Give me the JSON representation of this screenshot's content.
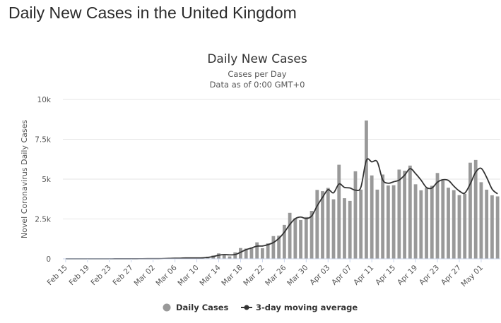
{
  "page": {
    "title": "Daily New Cases in the United Kingdom"
  },
  "chart_data": {
    "type": "bar",
    "title": "Daily New Cases",
    "subtitle_lines": [
      "Cases per Day",
      "Data as of 0:00 GMT+0"
    ],
    "ylabel": "Novel Coronavirus Daily Cases",
    "xlabel": "",
    "ylim": [
      0,
      10000
    ],
    "yticks": [
      0,
      2500,
      5000,
      7500,
      10000
    ],
    "ytick_labels": [
      "0",
      "2.5k",
      "5k",
      "7.5k",
      "10k"
    ],
    "grid": true,
    "legend_position": "bottom",
    "categories": [
      "Feb 15",
      "Feb 16",
      "Feb 17",
      "Feb 18",
      "Feb 19",
      "Feb 20",
      "Feb 21",
      "Feb 22",
      "Feb 23",
      "Feb 24",
      "Feb 25",
      "Feb 26",
      "Feb 27",
      "Feb 28",
      "Feb 29",
      "Mar 01",
      "Mar 02",
      "Mar 03",
      "Mar 04",
      "Mar 05",
      "Mar 06",
      "Mar 07",
      "Mar 08",
      "Mar 09",
      "Mar 10",
      "Mar 11",
      "Mar 12",
      "Mar 13",
      "Mar 14",
      "Mar 15",
      "Mar 16",
      "Mar 17",
      "Mar 18",
      "Mar 19",
      "Mar 20",
      "Mar 21",
      "Mar 22",
      "Mar 23",
      "Mar 24",
      "Mar 25",
      "Mar 26",
      "Mar 27",
      "Mar 28",
      "Mar 29",
      "Mar 30",
      "Mar 31",
      "Apr 01",
      "Apr 02",
      "Apr 03",
      "Apr 04",
      "Apr 05",
      "Apr 06",
      "Apr 07",
      "Apr 08",
      "Apr 09",
      "Apr 10",
      "Apr 11",
      "Apr 12",
      "Apr 13",
      "Apr 14",
      "Apr 15",
      "Apr 16",
      "Apr 17",
      "Apr 18",
      "Apr 19",
      "Apr 20",
      "Apr 21",
      "Apr 22",
      "Apr 23",
      "Apr 24",
      "Apr 25",
      "Apr 26",
      "Apr 27",
      "Apr 28",
      "Apr 29",
      "Apr 30",
      "May 01",
      "May 02",
      "May 03",
      "May 04"
    ],
    "xtick_labels": [
      "Feb 15",
      "Feb 19",
      "Feb 23",
      "Feb 27",
      "Mar 02",
      "Mar 06",
      "Mar 10",
      "Mar 14",
      "Mar 18",
      "Mar 22",
      "Mar 26",
      "Mar 30",
      "Apr 03",
      "Apr 07",
      "Apr 11",
      "Apr 15",
      "Apr 19",
      "Apr 23",
      "Apr 27",
      "May 01"
    ],
    "series": [
      {
        "name": "Daily Cases",
        "kind": "bar",
        "color": "#999999",
        "values": [
          0,
          0,
          0,
          0,
          0,
          0,
          0,
          0,
          0,
          3,
          3,
          2,
          5,
          3,
          12,
          12,
          4,
          11,
          34,
          30,
          48,
          43,
          67,
          46,
          50,
          87,
          134,
          208,
          342,
          250,
          152,
          407,
          676,
          643,
          714,
          1035,
          665,
          967,
          1427,
          1452,
          2129,
          2885,
          2546,
          2433,
          2619,
          3009,
          4324,
          4244,
          4450,
          3735,
          5903,
          3802,
          3634,
          5491,
          4344,
          8681,
          5233,
          4342,
          5288,
          4603,
          4617,
          5599,
          5525,
          5850,
          4676,
          4301,
          4451,
          4583,
          5386,
          4913,
          4463,
          4309,
          3996,
          4076,
          6032,
          6201,
          4806,
          4339,
          3985,
          3917
        ]
      },
      {
        "name": "3-day moving average",
        "kind": "line",
        "color": "#333333",
        "values": [
          0,
          0,
          0,
          0,
          0,
          0,
          0,
          0,
          1,
          2,
          3,
          3,
          3,
          3,
          7,
          9,
          9,
          9,
          16,
          25,
          37,
          40,
          53,
          52,
          54,
          61,
          90,
          143,
          228,
          267,
          248,
          270,
          412,
          575,
          678,
          797,
          805,
          889,
          1020,
          1281,
          1669,
          2155,
          2520,
          2621,
          2533,
          2687,
          3317,
          3859,
          4339,
          4143,
          4696,
          4480,
          4446,
          4309,
          4490,
          6172,
          6086,
          6085,
          4954,
          4744,
          4836,
          4940,
          5247,
          5658,
          5350,
          4942,
          4476,
          4445,
          4807,
          4961,
          4921,
          4562,
          4256,
          4127,
          4701,
          5436,
          5680,
          5115,
          4377,
          4080
        ]
      }
    ]
  }
}
